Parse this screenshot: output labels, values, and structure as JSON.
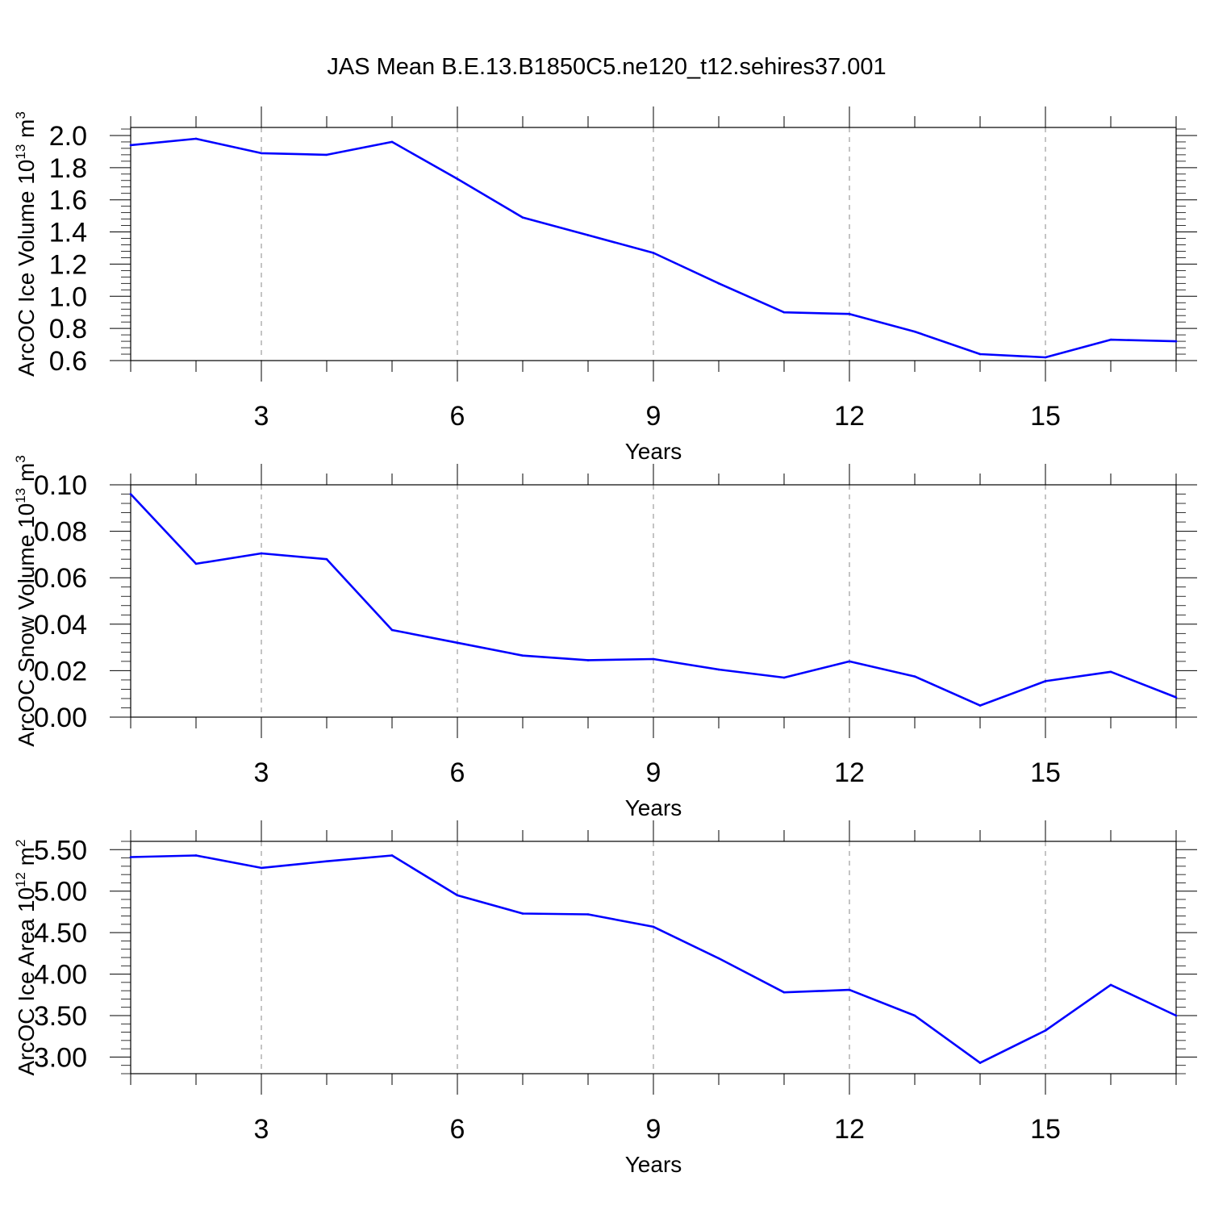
{
  "figure": {
    "title": "JAS Mean B.E.13.B1850C5.ne120_t12.sehires37.001",
    "line_color": "#0000ff",
    "grid_color": "#888888"
  },
  "chart_data": [
    {
      "type": "line",
      "title": "",
      "xlabel": "Years",
      "ylabel_parts": [
        "ArcOC Ice Volume 10",
        "13",
        " m",
        "3"
      ],
      "xlim": [
        1,
        17
      ],
      "ylim": [
        0.6,
        2.05
      ],
      "x_ticks": [
        3,
        6,
        9,
        12,
        15
      ],
      "x_tick_labels": [
        "3",
        "6",
        "9",
        "12",
        "15"
      ],
      "y_ticks": [
        0.6,
        0.8,
        1.0,
        1.2,
        1.4,
        1.6,
        1.8,
        2.0
      ],
      "y_tick_labels": [
        "0.6",
        "0.8",
        "1.0",
        "1.2",
        "1.4",
        "1.6",
        "1.8",
        "2.0"
      ],
      "grid": "x-dashed",
      "series": [
        {
          "x": [
            1,
            2,
            3,
            4,
            5,
            6,
            7,
            8,
            9,
            10,
            11,
            12,
            13,
            14,
            15,
            16,
            17
          ],
          "values": [
            1.94,
            1.98,
            1.89,
            1.88,
            1.96,
            1.73,
            1.49,
            1.38,
            1.27,
            1.08,
            0.9,
            0.89,
            0.78,
            0.64,
            0.62,
            0.73,
            0.72
          ]
        }
      ]
    },
    {
      "type": "line",
      "title": "",
      "xlabel": "Years",
      "ylabel_parts": [
        "ArcOC Snow Volume 10",
        "13",
        " m",
        "3"
      ],
      "xlim": [
        1,
        17
      ],
      "ylim": [
        0.0,
        0.1
      ],
      "x_ticks": [
        3,
        6,
        9,
        12,
        15
      ],
      "x_tick_labels": [
        "3",
        "6",
        "9",
        "12",
        "15"
      ],
      "y_ticks": [
        0.0,
        0.02,
        0.04,
        0.06,
        0.08,
        0.1
      ],
      "y_tick_labels": [
        "0.00",
        "0.02",
        "0.04",
        "0.06",
        "0.08",
        "0.10"
      ],
      "grid": "x-dashed",
      "series": [
        {
          "x": [
            1,
            2,
            3,
            4,
            5,
            6,
            7,
            8,
            9,
            10,
            11,
            12,
            13,
            14,
            15,
            16,
            17
          ],
          "values": [
            0.096,
            0.066,
            0.0705,
            0.068,
            0.0375,
            0.032,
            0.0265,
            0.0245,
            0.025,
            0.0205,
            0.017,
            0.024,
            0.0175,
            0.005,
            0.0155,
            0.0195,
            0.0085
          ]
        }
      ]
    },
    {
      "type": "line",
      "title": "",
      "xlabel": "Years",
      "ylabel_parts": [
        "ArcOC Ice Area 10",
        "12",
        " m",
        "2"
      ],
      "xlim": [
        1,
        17
      ],
      "ylim": [
        2.8,
        5.6
      ],
      "x_ticks": [
        3,
        6,
        9,
        12,
        15
      ],
      "x_tick_labels": [
        "3",
        "6",
        "9",
        "12",
        "15"
      ],
      "y_ticks": [
        3.0,
        3.5,
        4.0,
        4.5,
        5.0,
        5.5
      ],
      "y_tick_labels": [
        "3.00",
        "3.50",
        "4.00",
        "4.50",
        "5.00",
        "5.50"
      ],
      "grid": "x-dashed",
      "series": [
        {
          "x": [
            1,
            2,
            3,
            4,
            5,
            6,
            7,
            8,
            9,
            10,
            11,
            12,
            13,
            14,
            15,
            16,
            17
          ],
          "values": [
            5.41,
            5.43,
            5.28,
            5.36,
            5.43,
            4.95,
            4.73,
            4.72,
            4.57,
            4.19,
            3.78,
            3.81,
            3.5,
            2.93,
            3.32,
            3.87,
            3.5
          ]
        }
      ]
    }
  ]
}
